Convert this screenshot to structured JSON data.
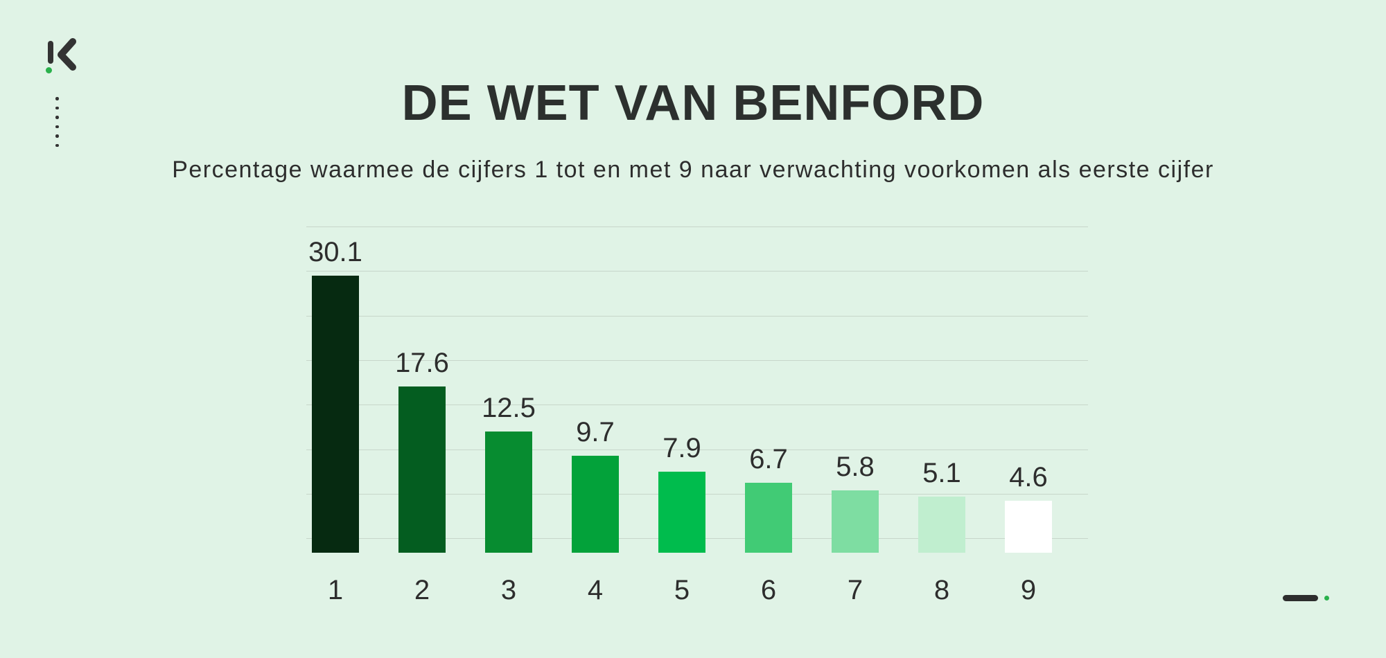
{
  "page": {
    "background_color": "#e0f3e6",
    "text_color": "#2d2d2d",
    "accent_green": "#2ab14c"
  },
  "header": {
    "title": "DE WET VAN BENFORD",
    "subtitle": "Percentage waarmee de cijfers 1 tot en met 9 naar verwachting voorkomen als eerste cijfer"
  },
  "branding": {
    "logo_icon": "k-logo-mark",
    "logo_colors": {
      "mark": "#333333",
      "dot": "#2ab14c"
    },
    "dots_column_count": 6,
    "footer_mark_icon": "dash-and-dot-mark"
  },
  "chart_data": {
    "type": "bar",
    "title": "DE WET VAN BENFORD",
    "subtitle": "Percentage waarmee de cijfers 1 tot en met 9 naar verwachting voorkomen als eerste cijfer",
    "categories": [
      "1",
      "2",
      "3",
      "4",
      "5",
      "6",
      "7",
      "8",
      "9"
    ],
    "values": [
      30.1,
      17.6,
      12.5,
      9.7,
      7.9,
      6.7,
      5.8,
      5.1,
      4.6
    ],
    "value_labels": [
      "30.1",
      "17.6",
      "12.5",
      "9.7",
      "7.9",
      "6.7",
      "5.8",
      "5.1",
      "4.6"
    ],
    "bar_colors": [
      "#062a11",
      "#045d20",
      "#078c30",
      "#03a23a",
      "#00bc4d",
      "#41cb75",
      "#7edda2",
      "#c0eecf",
      "#ffffff"
    ],
    "value_label_color": "#2d2d2d",
    "category_label_color": "#2d2d2d",
    "gridline_color": "#c7d6ca",
    "gridline_count": 8,
    "grid": true,
    "legend": false,
    "xlabel": "",
    "ylabel": "",
    "ylim": [
      0,
      35
    ]
  }
}
